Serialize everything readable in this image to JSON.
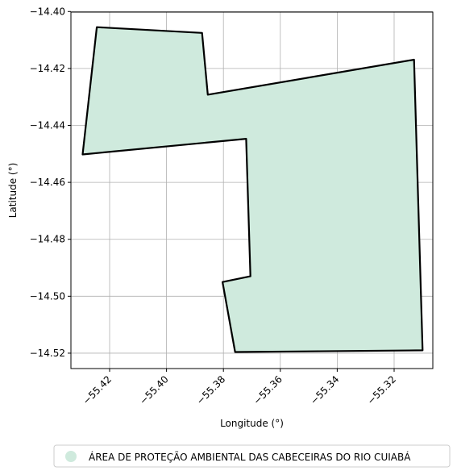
{
  "chart_data": {
    "type": "map",
    "xlabel": "Longitude (°)",
    "ylabel": "Latitude (°)",
    "xlim": [
      -55.4336,
      -55.3064
    ],
    "ylim": [
      -14.5254,
      -14.4002
    ],
    "grid": true,
    "legend_position": "bottom-center",
    "x_ticks": [
      {
        "value": -55.42,
        "label": "−55.42"
      },
      {
        "value": -55.4,
        "label": "−55.40"
      },
      {
        "value": -55.38,
        "label": "−55.38"
      },
      {
        "value": -55.36,
        "label": "−55.36"
      },
      {
        "value": -55.34,
        "label": "−55.34"
      },
      {
        "value": -55.32,
        "label": "−55.32"
      }
    ],
    "y_ticks": [
      {
        "value": -14.4,
        "label": "−14.40"
      },
      {
        "value": -14.42,
        "label": "−14.42"
      },
      {
        "value": -14.44,
        "label": "−14.44"
      },
      {
        "value": -14.46,
        "label": "−14.46"
      },
      {
        "value": -14.48,
        "label": "−14.48"
      },
      {
        "value": -14.5,
        "label": "−14.50"
      },
      {
        "value": -14.52,
        "label": "−14.52"
      }
    ],
    "series": [
      {
        "name": "ÁREA DE PROTEÇÃO AMBIENTAL DAS CABECEIRAS DO RIO CUIABÁ",
        "fill_color": "#cfeadd",
        "edge_color": "#000000",
        "polygon": [
          [
            -55.4245,
            -14.4055
          ],
          [
            -55.3875,
            -14.4075
          ],
          [
            -55.3855,
            -14.4292
          ],
          [
            -55.313,
            -14.4169
          ],
          [
            -55.31,
            -14.519
          ],
          [
            -55.3759,
            -14.5196
          ],
          [
            -55.3803,
            -14.495
          ],
          [
            -55.3705,
            -14.493
          ],
          [
            -55.372,
            -14.4447
          ],
          [
            -55.4295,
            -14.4502
          ],
          [
            -55.4245,
            -14.4055
          ]
        ]
      }
    ]
  }
}
